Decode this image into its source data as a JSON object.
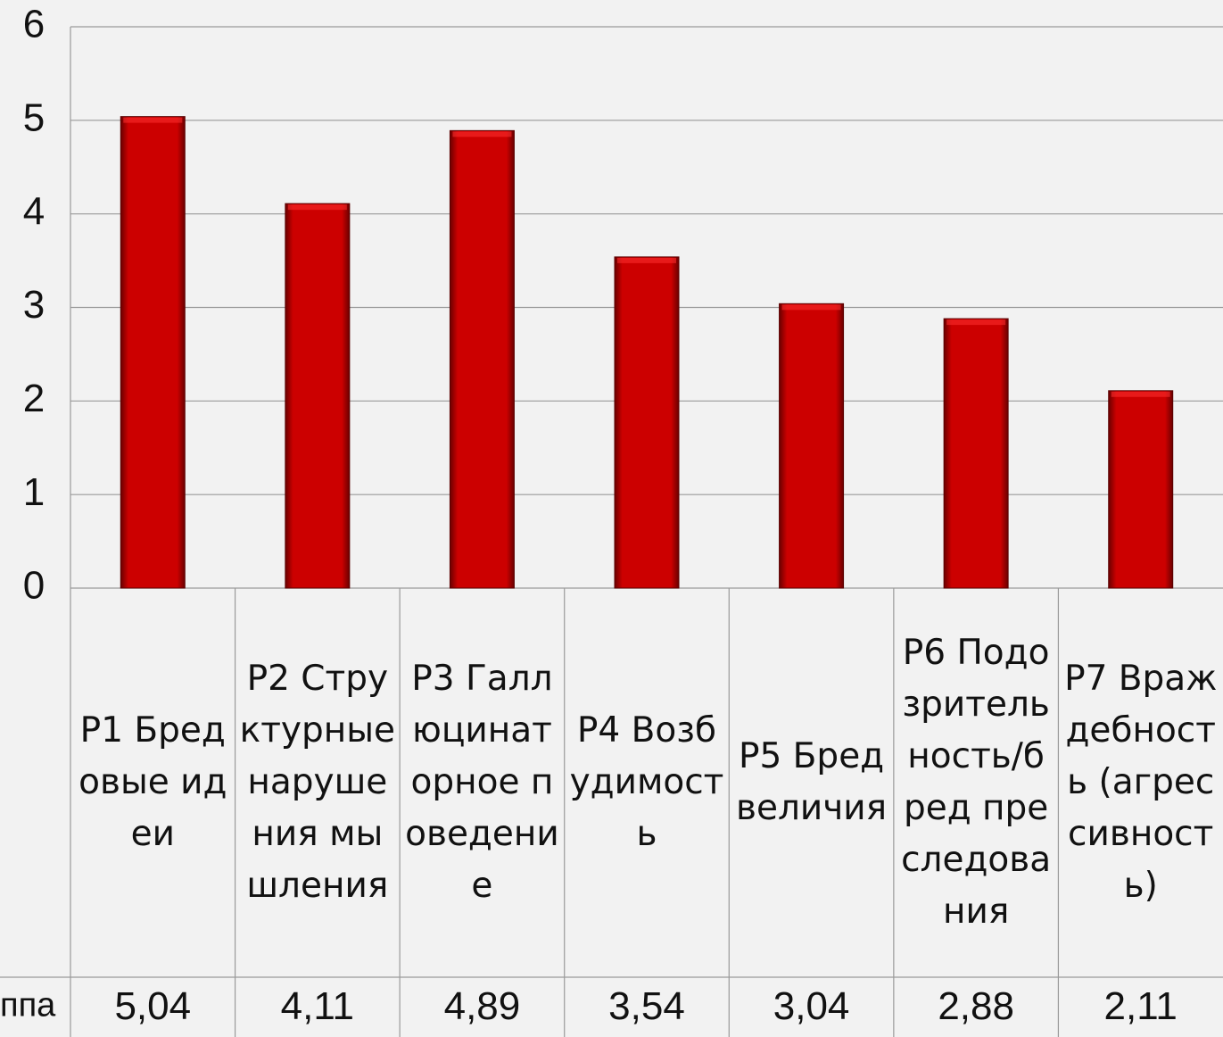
{
  "chart_data": {
    "type": "bar",
    "categories": [
      "P1 Бредовые идеи",
      "P2 Структурные нарушения мышления",
      "P3 Галлюцинаторное поведение",
      "P4 Возбудимость",
      "P5 Бред величия",
      "P6 Подозрительность/бред преследования",
      "P7 Враждебность (агрессивность)"
    ],
    "series": [
      {
        "name": "ппа",
        "color": "#cc0000",
        "values": [
          5.04,
          4.11,
          4.89,
          3.54,
          3.04,
          2.88,
          2.11
        ],
        "value_labels": [
          "5,04",
          "4,11",
          "4,89",
          "3,54",
          "3,04",
          "2,88",
          "2,11"
        ]
      }
    ],
    "ylim": [
      0,
      6
    ],
    "yticks": [
      0,
      1,
      2,
      3,
      4,
      5,
      6
    ],
    "grid": true
  }
}
